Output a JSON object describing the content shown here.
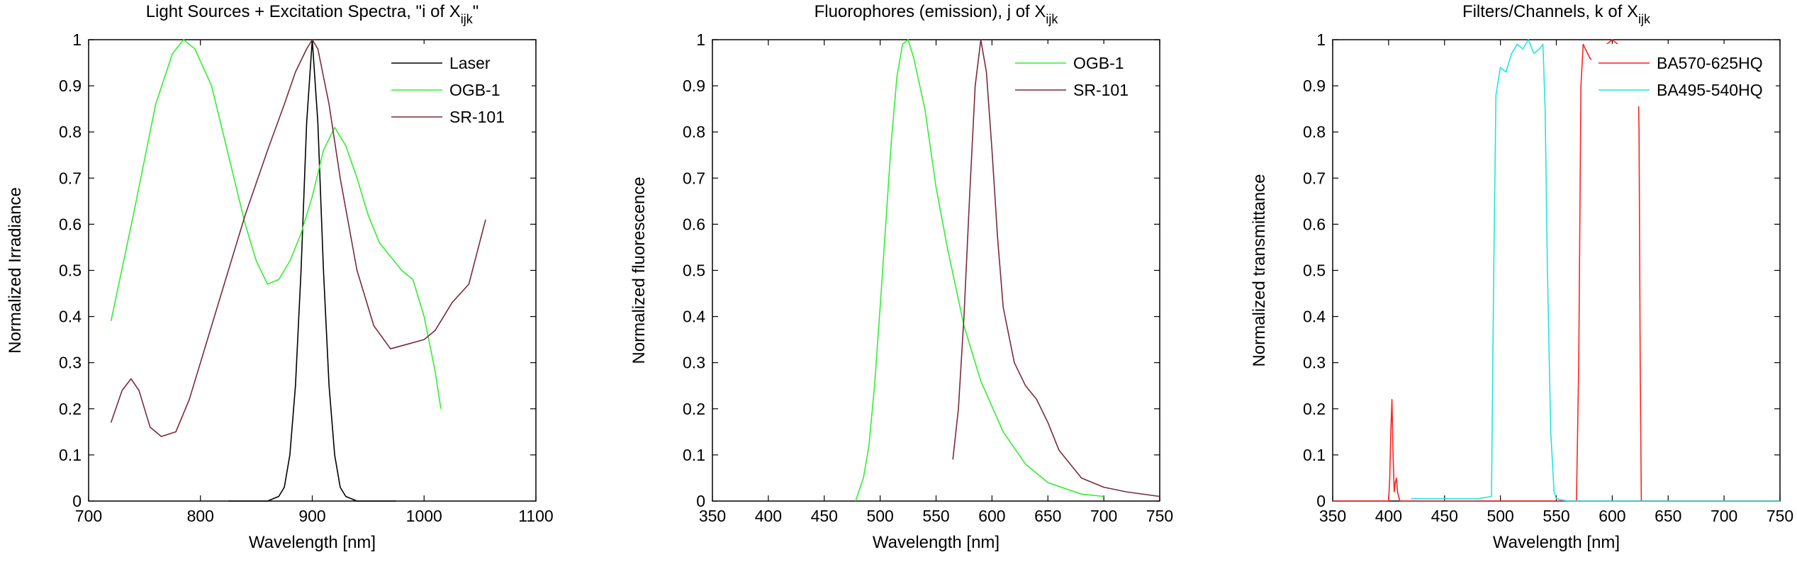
{
  "chart_data": [
    {
      "type": "line",
      "title": "Light Sources + Excitation Spectra, \"i of X",
      "title_sub": "ijk",
      "title_suffix": "\"",
      "xlabel": "Wavelength [nm]",
      "ylabel": "Normalized Irradiance",
      "xlim": [
        700,
        1100
      ],
      "ylim": [
        0,
        1
      ],
      "xticks": [
        700,
        800,
        900,
        1000,
        1100
      ],
      "yticks": [
        0,
        0.1,
        0.2,
        0.3,
        0.4,
        0.5,
        0.6,
        0.7,
        0.8,
        0.9,
        1
      ],
      "legend_position": "top-right",
      "series": [
        {
          "name": "Laser",
          "color": "#000000",
          "x": [
            825,
            860,
            870,
            875,
            880,
            885,
            890,
            895,
            900,
            905,
            910,
            915,
            920,
            925,
            930,
            940,
            975
          ],
          "y": [
            0,
            0,
            0.01,
            0.03,
            0.1,
            0.25,
            0.5,
            0.82,
            1.0,
            0.82,
            0.5,
            0.25,
            0.1,
            0.03,
            0.01,
            0,
            0
          ]
        },
        {
          "name": "OGB-1",
          "color": "#33ee33",
          "x": [
            720,
            740,
            760,
            775,
            785,
            795,
            810,
            820,
            830,
            840,
            850,
            860,
            870,
            880,
            890,
            900,
            910,
            920,
            930,
            940,
            950,
            960,
            970,
            980,
            990,
            1000,
            1010,
            1015
          ],
          "y": [
            0.39,
            0.62,
            0.86,
            0.97,
            1.0,
            0.98,
            0.9,
            0.8,
            0.7,
            0.6,
            0.52,
            0.47,
            0.48,
            0.52,
            0.58,
            0.66,
            0.76,
            0.81,
            0.77,
            0.7,
            0.62,
            0.56,
            0.53,
            0.5,
            0.48,
            0.4,
            0.28,
            0.2
          ]
        },
        {
          "name": "SR-101",
          "color": "#7a2a3c",
          "x": [
            720,
            730,
            738,
            745,
            755,
            765,
            778,
            790,
            800,
            820,
            840,
            860,
            875,
            885,
            895,
            900,
            905,
            915,
            925,
            940,
            955,
            970,
            985,
            1000,
            1010,
            1025,
            1040,
            1055
          ],
          "y": [
            0.17,
            0.24,
            0.265,
            0.24,
            0.16,
            0.14,
            0.15,
            0.22,
            0.3,
            0.46,
            0.62,
            0.76,
            0.86,
            0.93,
            0.98,
            1.0,
            0.98,
            0.86,
            0.7,
            0.5,
            0.38,
            0.33,
            0.34,
            0.35,
            0.37,
            0.43,
            0.47,
            0.61
          ]
        }
      ]
    },
    {
      "type": "line",
      "title": "Fluorophores (emission), j of X",
      "title_sub": "ijk",
      "title_suffix": "",
      "xlabel": "Wavelength [nm]",
      "ylabel": "Normalized fluorescence",
      "xlim": [
        350,
        750
      ],
      "ylim": [
        0,
        1
      ],
      "xticks": [
        350,
        400,
        450,
        500,
        550,
        600,
        650,
        700,
        750
      ],
      "yticks": [
        0,
        0.1,
        0.2,
        0.3,
        0.4,
        0.5,
        0.6,
        0.7,
        0.8,
        0.9,
        1
      ],
      "legend_position": "top-right",
      "series": [
        {
          "name": "OGB-1",
          "color": "#33ee33",
          "x": [
            478,
            485,
            490,
            495,
            500,
            505,
            510,
            515,
            520,
            525,
            530,
            540,
            550,
            560,
            575,
            590,
            610,
            630,
            650,
            680,
            700
          ],
          "y": [
            0,
            0.05,
            0.12,
            0.25,
            0.42,
            0.6,
            0.78,
            0.92,
            0.99,
            1.0,
            0.96,
            0.85,
            0.68,
            0.55,
            0.38,
            0.26,
            0.15,
            0.08,
            0.04,
            0.015,
            0.01
          ]
        },
        {
          "name": "SR-101",
          "color": "#7a2a3c",
          "x": [
            565,
            570,
            575,
            580,
            585,
            590,
            595,
            600,
            605,
            610,
            620,
            630,
            640,
            650,
            660,
            680,
            700,
            720,
            750
          ],
          "y": [
            0.09,
            0.2,
            0.4,
            0.66,
            0.9,
            1.0,
            0.93,
            0.76,
            0.57,
            0.42,
            0.3,
            0.25,
            0.22,
            0.17,
            0.11,
            0.05,
            0.03,
            0.02,
            0.01
          ]
        }
      ]
    },
    {
      "type": "line",
      "title": "Filters/Channels, k of X",
      "title_sub": "ijk",
      "title_suffix": "",
      "xlabel": "Wavelength [nm]",
      "ylabel": "Normalized transmittance",
      "xlim": [
        350,
        750
      ],
      "ylim": [
        0,
        1
      ],
      "xticks": [
        350,
        400,
        450,
        500,
        550,
        600,
        650,
        700,
        750
      ],
      "yticks": [
        0,
        0.1,
        0.2,
        0.3,
        0.4,
        0.5,
        0.6,
        0.7,
        0.8,
        0.9,
        1
      ],
      "legend_position": "top-right",
      "series": [
        {
          "name": "BA570-625HQ",
          "color": "#ff2222",
          "x": [
            350,
            400,
            401,
            402,
            403,
            404,
            405,
            406,
            407,
            408,
            409,
            410,
            420,
            568,
            570,
            572,
            574,
            576,
            580,
            585,
            590,
            595,
            600,
            605,
            610,
            615,
            620,
            622,
            623,
            624,
            625,
            626,
            750
          ],
          "y": [
            0,
            0,
            0.05,
            0.15,
            0.22,
            0.1,
            0.02,
            0.04,
            0.05,
            0.02,
            0.01,
            0,
            0,
            0,
            0.3,
            0.9,
            0.99,
            0.98,
            0.96,
            0.95,
            0.97,
            0.99,
            1.0,
            0.99,
            0.98,
            0.96,
            0.95,
            0.92,
            0.94,
            0.8,
            0.3,
            0,
            0
          ]
        },
        {
          "name": "BA495-540HQ",
          "color": "#22e4e4",
          "x": [
            420,
            480,
            492,
            494,
            496,
            500,
            505,
            510,
            515,
            520,
            525,
            530,
            535,
            538,
            540,
            542,
            545,
            548,
            550,
            560,
            750
          ],
          "y": [
            0.005,
            0.005,
            0.01,
            0.5,
            0.88,
            0.94,
            0.93,
            0.97,
            0.99,
            0.98,
            1.0,
            0.97,
            0.98,
            0.99,
            0.85,
            0.5,
            0.15,
            0.02,
            0.005,
            0,
            0
          ]
        }
      ]
    }
  ]
}
